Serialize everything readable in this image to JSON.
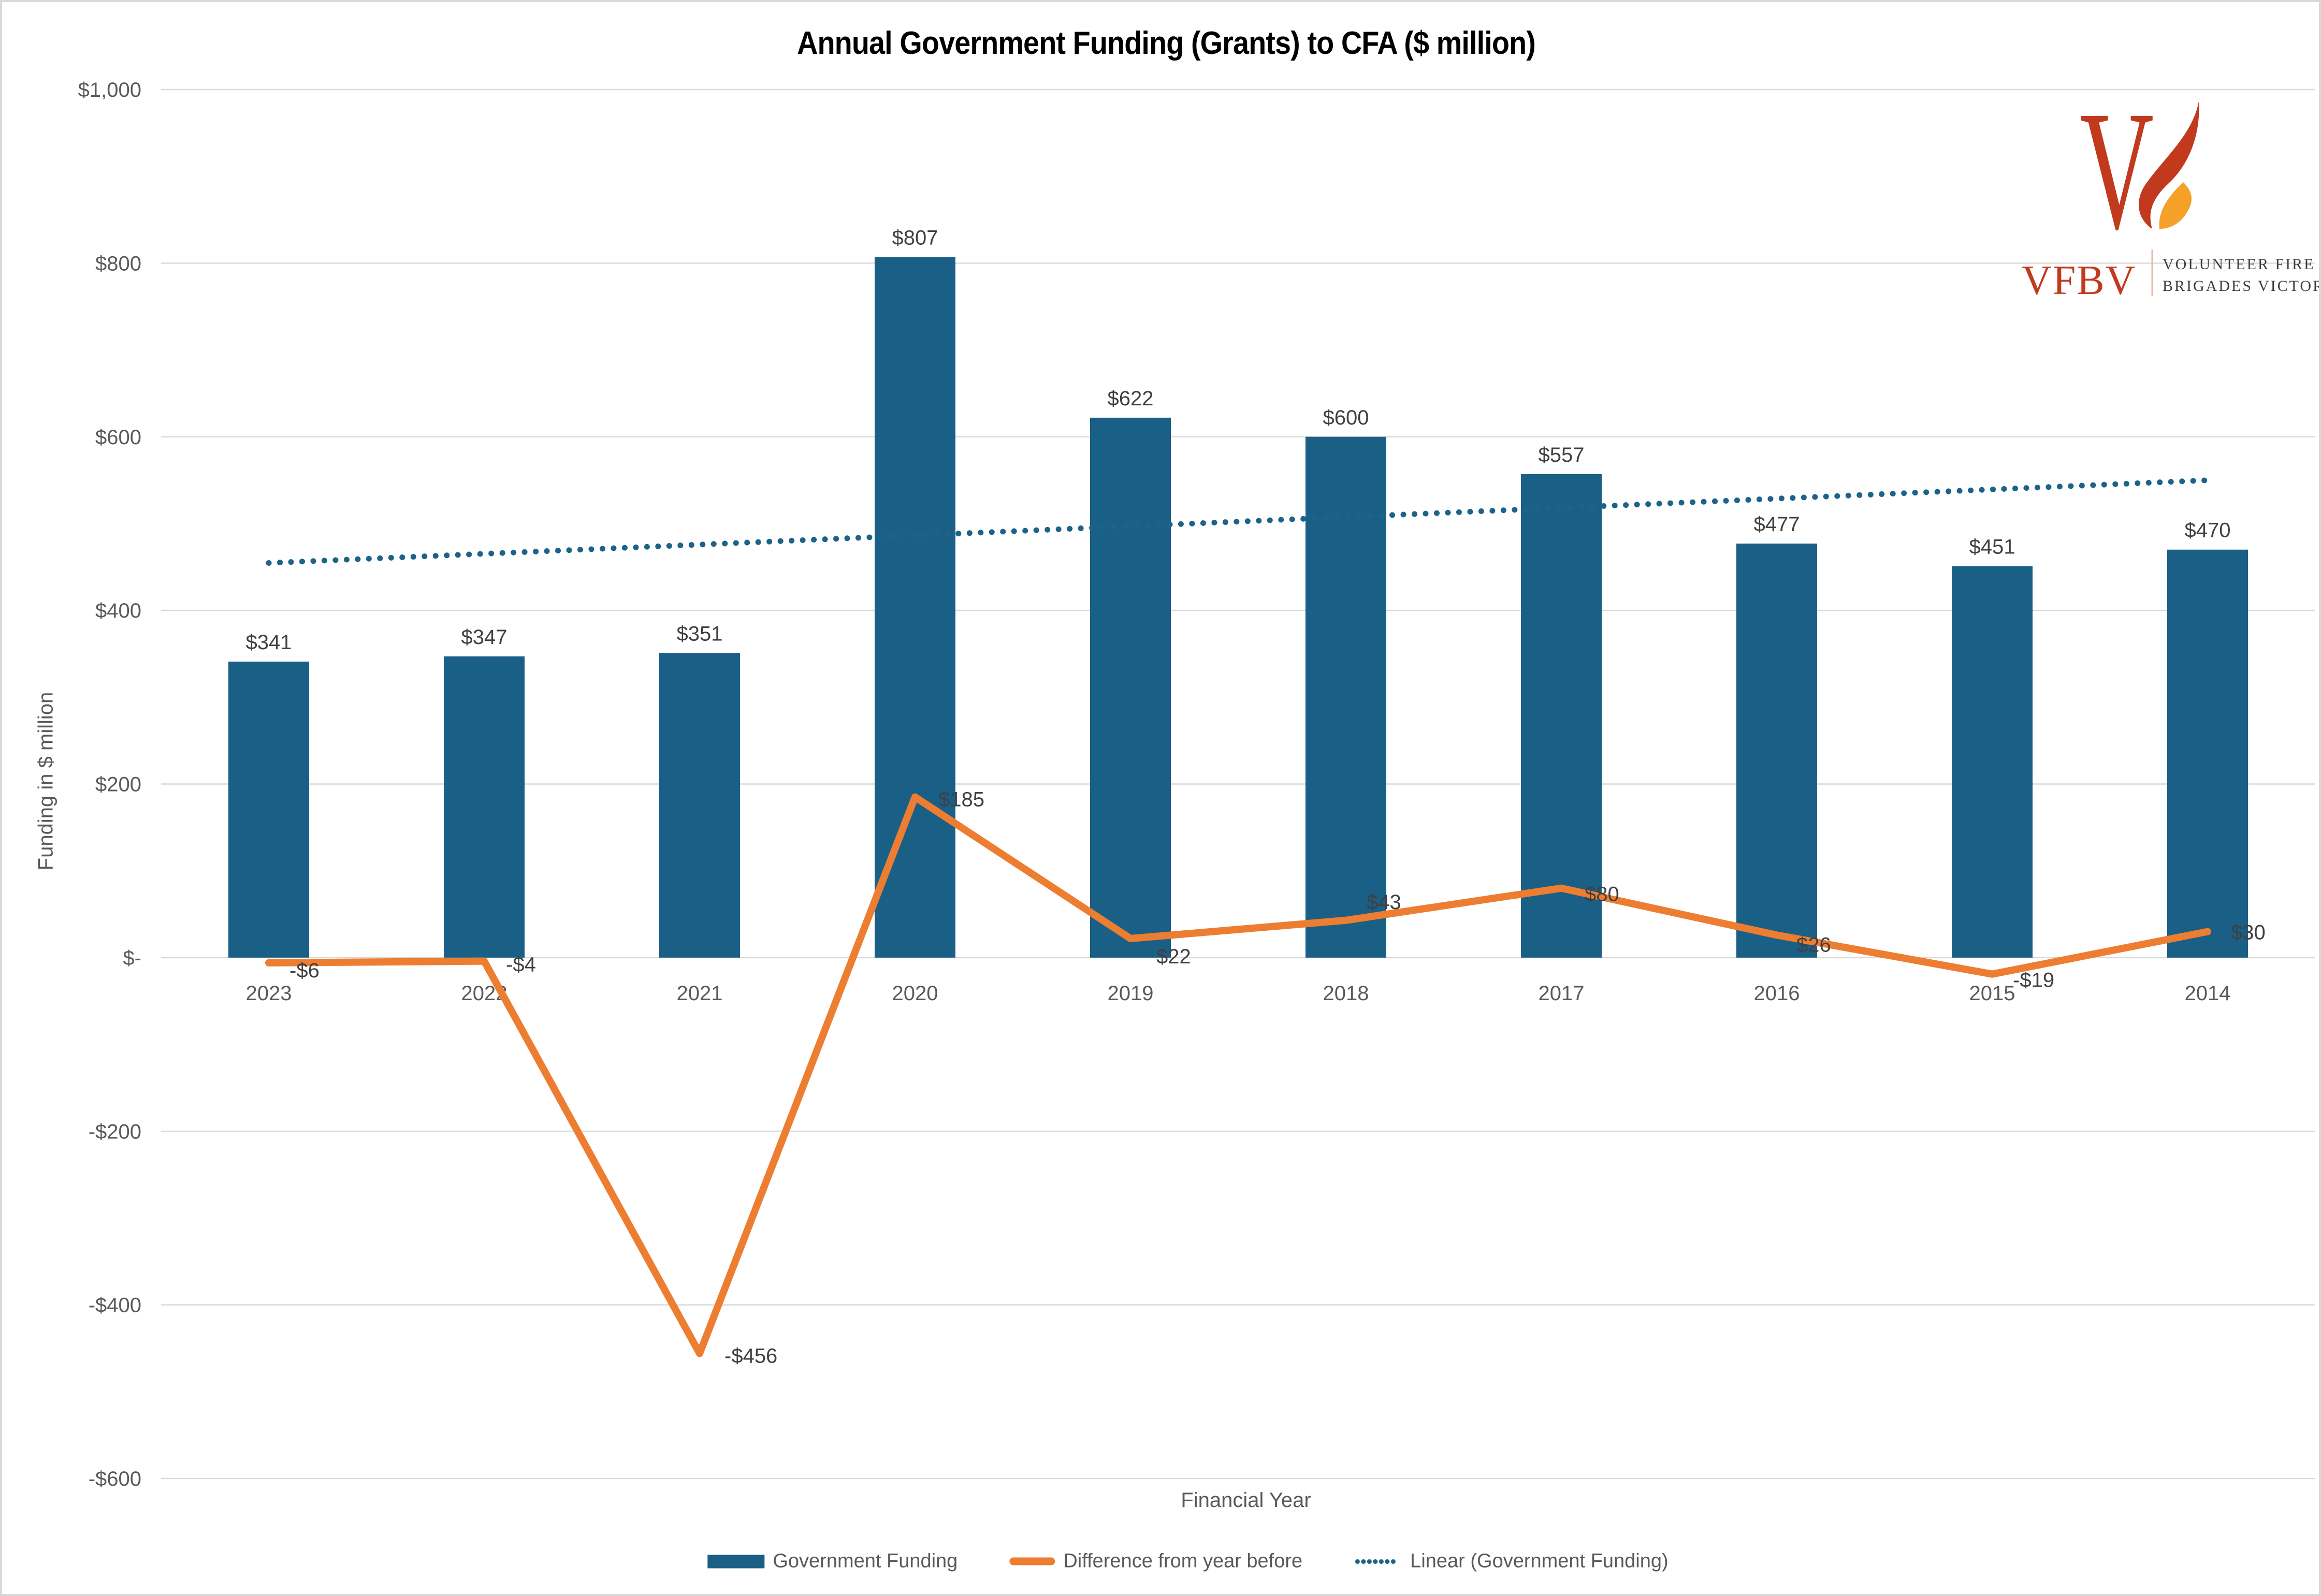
{
  "page": {
    "background": "#FFFFFF",
    "border_color": "#D9D9D9"
  },
  "title": "Annual Government Funding (Grants) to CFA ($ million)",
  "logo": {
    "mark_letter": "V",
    "acronym": "VFBV",
    "name_line1": "VOLUNTEER FIRE",
    "name_line2": "BRIGADES VICTORIA",
    "v_color": "#C13A1E",
    "flame_red": "#C13A1E",
    "flame_orange": "#F4A029",
    "text_color": "#3D3D3D"
  },
  "chart_data": {
    "type": "bar",
    "title": "Annual Government Funding (Grants) to CFA ($ million)",
    "xlabel": "Financial Year",
    "ylabel": "Funding in $ million",
    "categories": [
      "2023",
      "2022",
      "2021",
      "2020",
      "2019",
      "2018",
      "2017",
      "2016",
      "2015",
      "2014"
    ],
    "series": [
      {
        "name": "Government Funding",
        "type": "bar",
        "color": "#1A5F86",
        "values": [
          341,
          347,
          351,
          807,
          622,
          600,
          557,
          477,
          451,
          470
        ],
        "labels": [
          "$341",
          "$347",
          "$351",
          "$807",
          "$622",
          "$600",
          "$557",
          "$477",
          "$451",
          "$470"
        ]
      },
      {
        "name": "Difference from year before",
        "type": "line",
        "color": "#ED7D31",
        "values": [
          -6,
          -4,
          -456,
          185,
          22,
          43,
          80,
          26,
          -19,
          30
        ],
        "labels": [
          "-$6",
          "-$4",
          "-$456",
          "$185",
          "$22",
          "$43",
          "$80",
          "$26",
          "-$19",
          "$30"
        ]
      },
      {
        "name": "Linear (Government Funding)",
        "type": "linear-trendline",
        "based_on": "Government Funding",
        "color": "#1D6389",
        "style": "dotted"
      }
    ],
    "ylim": [
      -600,
      1000
    ],
    "ytick_step": 200,
    "ytick_labels": [
      "$1,000",
      "$800",
      "$600",
      "$400",
      "$200",
      "$-",
      "-$200",
      "-$400",
      "-$600"
    ],
    "grid": "horizontal",
    "gridline_color": "#D9D9D9",
    "tick_label_color": "#595959",
    "data_label_color": "#404040",
    "legend_position": "bottom"
  }
}
